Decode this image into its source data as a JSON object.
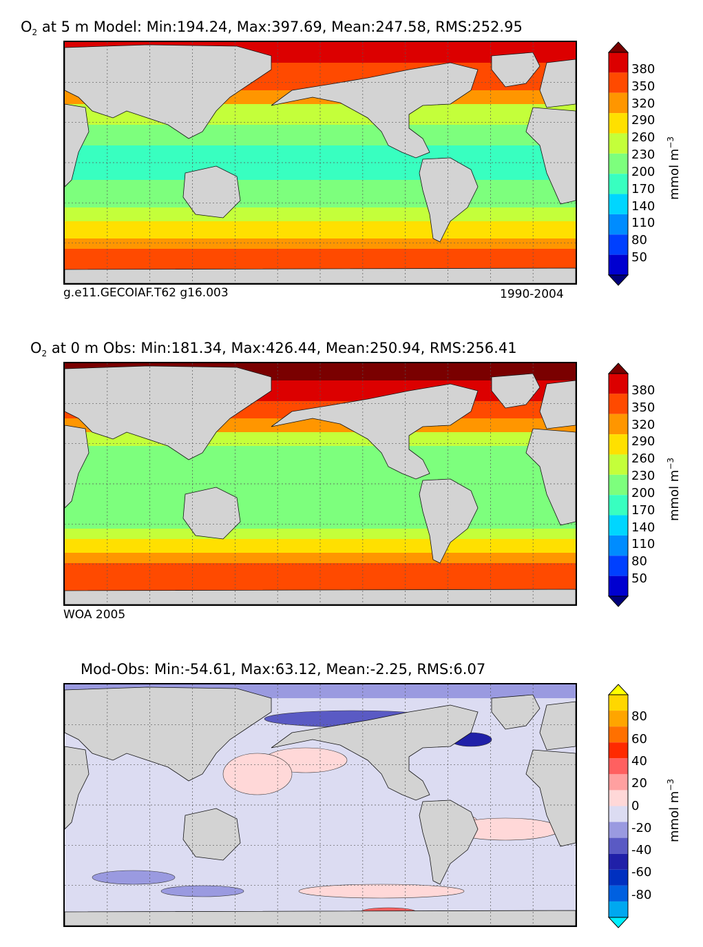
{
  "panels": [
    {
      "title_sym": "O",
      "title_sub": "2",
      "title_rest": " at 5 m Model: Min:194.24, Max:397.69, Mean:247.58, RMS:252.95",
      "caption_left": "g.e11.GECOIAF.T62 g16.003",
      "caption_right": "1990-2004",
      "colorbar": {
        "unit": "mmol m",
        "unit_sup": "−3",
        "ticks": [
          "380",
          "350",
          "320",
          "290",
          "260",
          "230",
          "200",
          "170",
          "140",
          "110",
          "80",
          "50"
        ],
        "colors": [
          "#7a0000",
          "#dc0000",
          "#ff4a00",
          "#ff9600",
          "#ffe000",
          "#c4ff3a",
          "#7dff7d",
          "#38ffc0",
          "#00d6ff",
          "#008cff",
          "#0040ff",
          "#0000d0",
          "#00007a"
        ]
      }
    },
    {
      "title_sym": "O",
      "title_sub": "2",
      "title_rest": " at 0 m Obs: Min:181.34, Max:426.44, Mean:250.94, RMS:256.41",
      "caption_left": "WOA 2005",
      "caption_right": "",
      "colorbar": {
        "unit": "mmol m",
        "unit_sup": "−3",
        "ticks": [
          "380",
          "350",
          "320",
          "290",
          "260",
          "230",
          "200",
          "170",
          "140",
          "110",
          "80",
          "50"
        ],
        "colors": [
          "#7a0000",
          "#dc0000",
          "#ff4a00",
          "#ff9600",
          "#ffe000",
          "#c4ff3a",
          "#7dff7d",
          "#38ffc0",
          "#00d6ff",
          "#008cff",
          "#0040ff",
          "#0000d0",
          "#00007a"
        ]
      }
    },
    {
      "title_sym": "",
      "title_sub": "",
      "title_rest": "Mod-Obs: Min:-54.61, Max:63.12, Mean:-2.25, RMS:6.07",
      "caption_left": "",
      "caption_right": "",
      "colorbar": {
        "unit": "mmol m",
        "unit_sup": "−3",
        "ticks": [
          "80",
          "60",
          "40",
          "20",
          "0",
          "-20",
          "-40",
          "-60",
          "-80"
        ],
        "colors": [
          "#ffff00",
          "#ffd700",
          "#ffa500",
          "#ff7000",
          "#ff2a00",
          "#ff6060",
          "#ffa0a0",
          "#ffd8d8",
          "#dcdcf2",
          "#9a9ae0",
          "#5a5ac4",
          "#2020a8",
          "#0030c0",
          "#0060e0",
          "#00a8f0",
          "#00f0ff"
        ]
      }
    }
  ],
  "chart_data": [
    {
      "type": "heatmap",
      "title": "O2 at 5 m Model: Min:194.24, Max:397.69, Mean:247.58, RMS:252.95",
      "variable": "O2",
      "depth": "5 m",
      "source": "Model",
      "stats": {
        "min": 194.24,
        "max": 397.69,
        "mean": 247.58,
        "rms": 252.95
      },
      "case": "g.e11.GECOIAF.T62 g16.003",
      "period": "1990-2004",
      "colorbar_label": "mmol m^-3",
      "levels": [
        50,
        80,
        110,
        140,
        170,
        200,
        230,
        260,
        290,
        320,
        350,
        380
      ],
      "extend": "both"
    },
    {
      "type": "heatmap",
      "title": "O2 at 0 m Obs: Min:181.34, Max:426.44, Mean:250.94, RMS:256.41",
      "variable": "O2",
      "depth": "0 m",
      "source": "Obs",
      "stats": {
        "min": 181.34,
        "max": 426.44,
        "mean": 250.94,
        "rms": 256.41
      },
      "dataset": "WOA 2005",
      "colorbar_label": "mmol m^-3",
      "levels": [
        50,
        80,
        110,
        140,
        170,
        200,
        230,
        260,
        290,
        320,
        350,
        380
      ],
      "extend": "both"
    },
    {
      "type": "heatmap",
      "title": "Mod-Obs: Min:-54.61, Max:63.12, Mean:-2.25, RMS:6.07",
      "stats": {
        "min": -54.61,
        "max": 63.12,
        "mean": -2.25,
        "rms": 6.07
      },
      "colorbar_label": "mmol m^-3",
      "levels": [
        -80,
        -60,
        -40,
        -20,
        0,
        20,
        40,
        60,
        80
      ],
      "extend": "both"
    }
  ]
}
